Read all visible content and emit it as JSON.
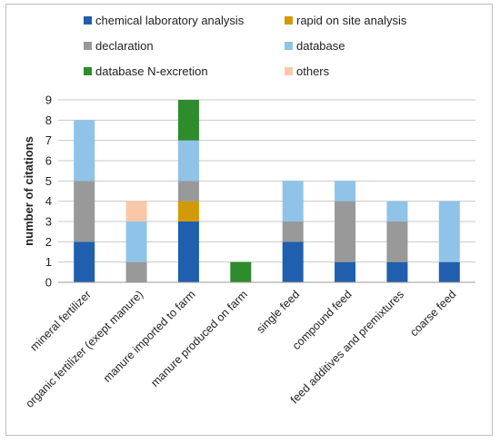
{
  "chart_data": {
    "type": "bar",
    "stacked": true,
    "categories": [
      "mineral fertilizer",
      "organic fertilizer (exept manure)",
      "manure imported to farm",
      "manure produced on farm",
      "single feed",
      "compound  feed",
      "feed additives and premixtures",
      "coarse feed"
    ],
    "series": [
      {
        "name": "chemical laboratory analysis",
        "color": "#1f5fad",
        "values": [
          2,
          0,
          3,
          0,
          2,
          1,
          1,
          1
        ]
      },
      {
        "name": "rapid on site analysis",
        "color": "#d19a06",
        "values": [
          0,
          0,
          1,
          0,
          0,
          0,
          0,
          0
        ]
      },
      {
        "name": "declaration",
        "color": "#999999",
        "values": [
          3,
          1,
          1,
          0,
          1,
          3,
          2,
          0
        ]
      },
      {
        "name": "database",
        "color": "#8fc3e8",
        "values": [
          3,
          2,
          2,
          0,
          2,
          1,
          1,
          3
        ]
      },
      {
        "name": "database N-excretion",
        "color": "#2e8b2e",
        "values": [
          0,
          0,
          2,
          1,
          0,
          0,
          0,
          0
        ]
      },
      {
        "name": "others",
        "color": "#f8c8a8",
        "values": [
          0,
          1,
          0,
          0,
          0,
          0,
          0,
          0
        ]
      }
    ],
    "title": "",
    "xlabel": "",
    "ylabel": "number of citations",
    "ylim": [
      0,
      9
    ],
    "yticks": [
      "0",
      "1",
      "2",
      "3",
      "4",
      "5",
      "6",
      "7",
      "8",
      "9"
    ],
    "grid": true,
    "legend_position": "top"
  }
}
